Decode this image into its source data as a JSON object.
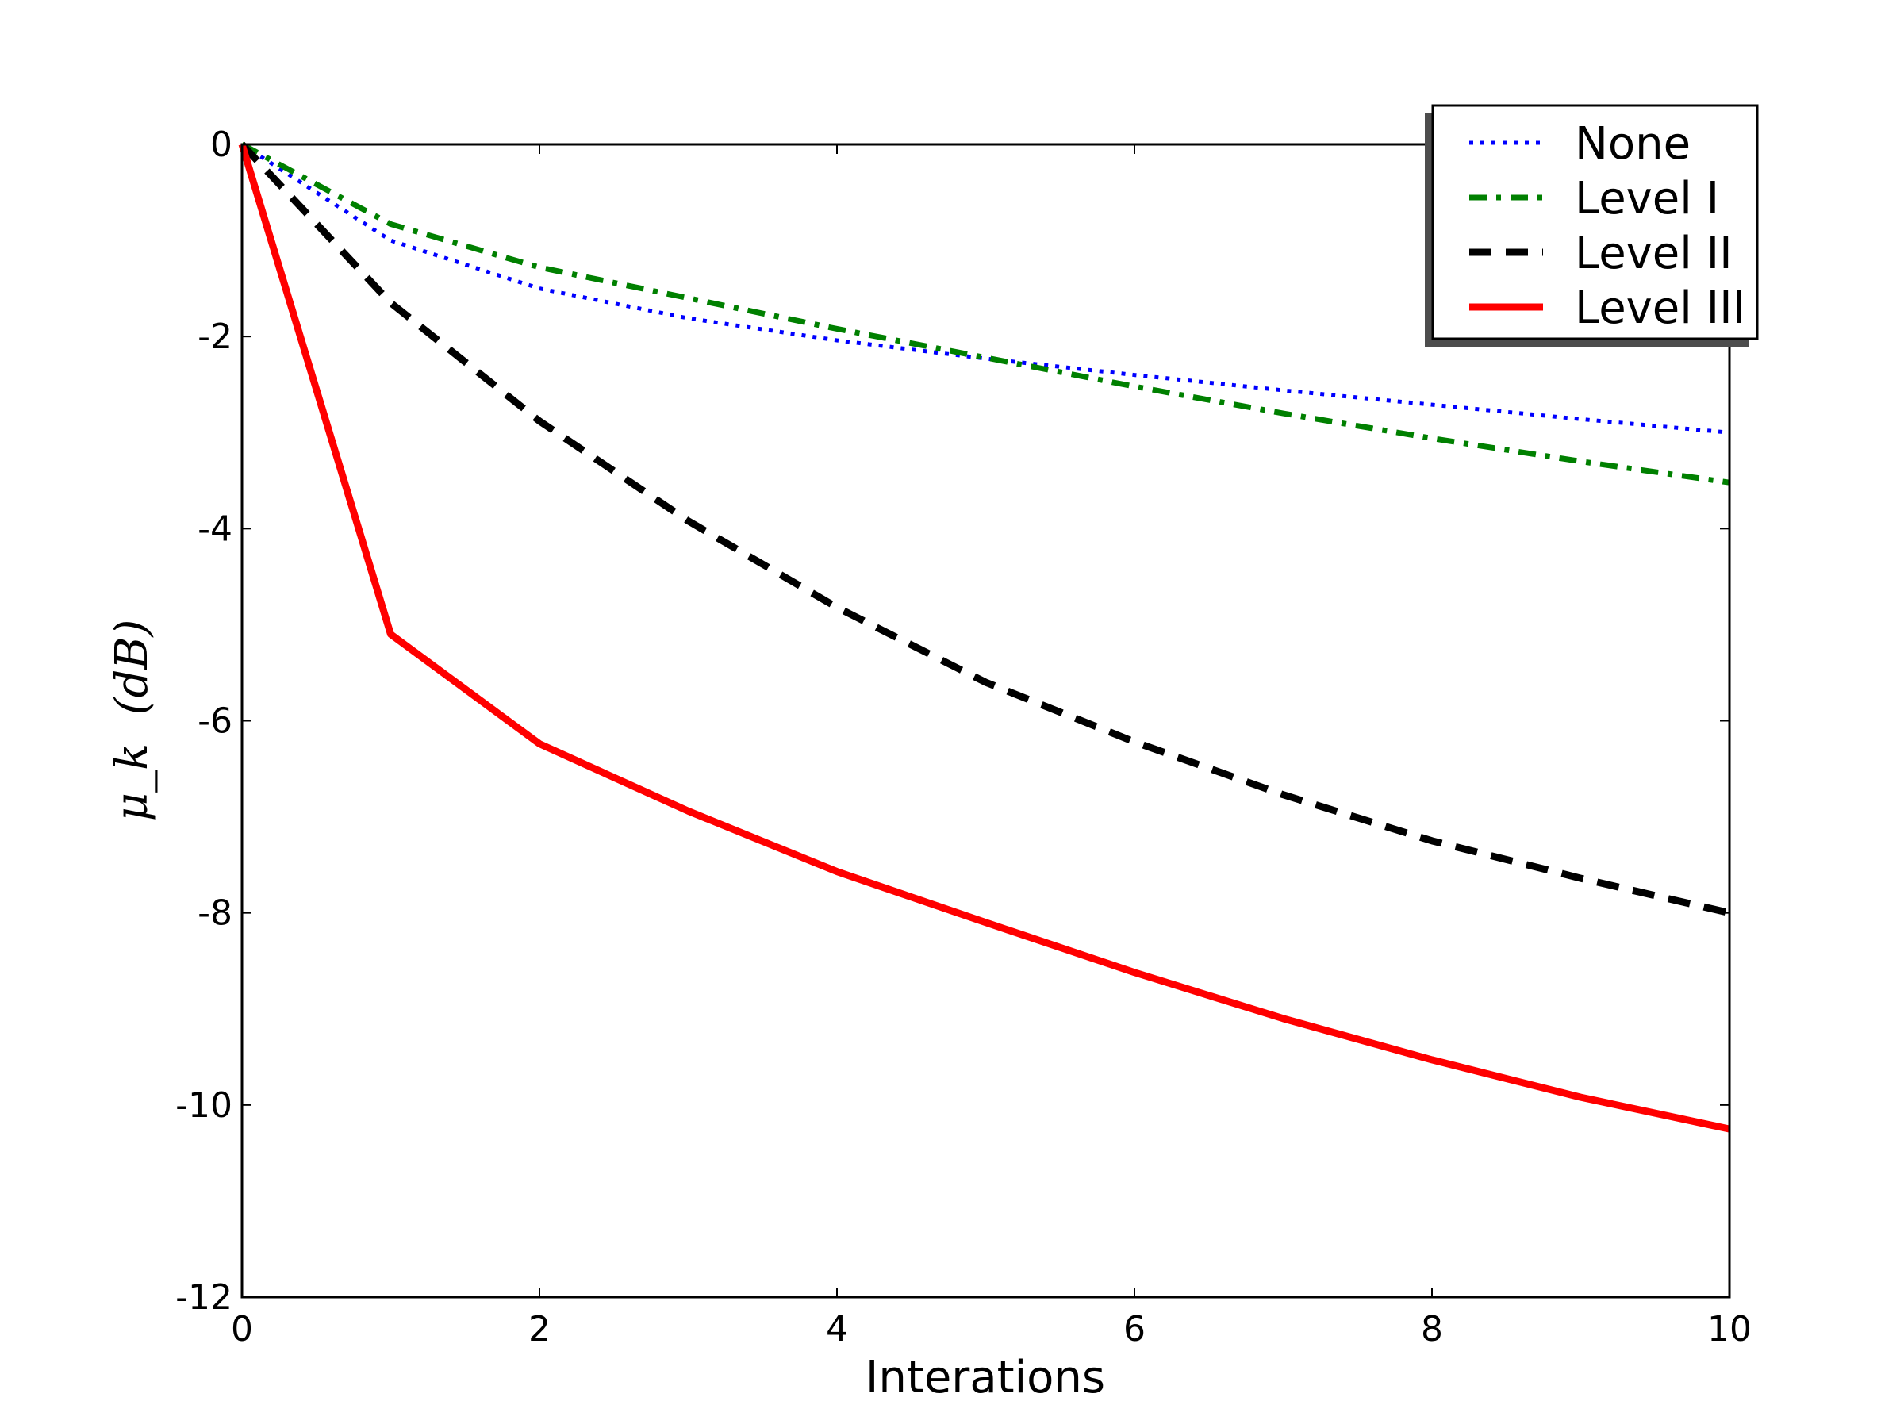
{
  "chart_data": {
    "type": "line",
    "title": "",
    "xlabel": "Interations",
    "ylabel": "μ_k  (dB)",
    "ylabel_parts": {
      "symbol": "μ",
      "subscript": "k",
      "unit": "(dB)"
    },
    "xlim": [
      0,
      10
    ],
    "ylim": [
      -12,
      0
    ],
    "xticks": [
      "0",
      "2",
      "4",
      "6",
      "8",
      "10"
    ],
    "yticks": [
      "0",
      "-2",
      "-4",
      "-6",
      "-8",
      "-10",
      "-12"
    ],
    "grid": false,
    "legend_position": "top-right",
    "x": [
      0,
      1,
      2,
      3,
      4,
      5,
      6,
      7,
      8,
      9,
      10
    ],
    "series": [
      {
        "name": "None",
        "color": "#0000ff",
        "style": "dotted",
        "values": [
          0,
          -1.0,
          -1.5,
          -1.81,
          -2.04,
          -2.23,
          -2.4,
          -2.56,
          -2.71,
          -2.86,
          -3.0
        ]
      },
      {
        "name": "Level I",
        "color": "#008000",
        "style": "dashdot",
        "values": [
          0,
          -0.83,
          -1.28,
          -1.6,
          -1.92,
          -2.22,
          -2.52,
          -2.8,
          -3.06,
          -3.3,
          -3.52
        ]
      },
      {
        "name": "Level II",
        "color": "#000000",
        "style": "dashed",
        "values": [
          0,
          -1.65,
          -2.88,
          -3.92,
          -4.82,
          -5.6,
          -6.22,
          -6.77,
          -7.25,
          -7.64,
          -8.0
        ]
      },
      {
        "name": "Level III",
        "color": "#ff0000",
        "style": "solid",
        "values": [
          0,
          -5.1,
          -6.24,
          -6.94,
          -7.57,
          -8.1,
          -8.62,
          -9.1,
          -9.53,
          -9.92,
          -10.25
        ]
      }
    ]
  }
}
